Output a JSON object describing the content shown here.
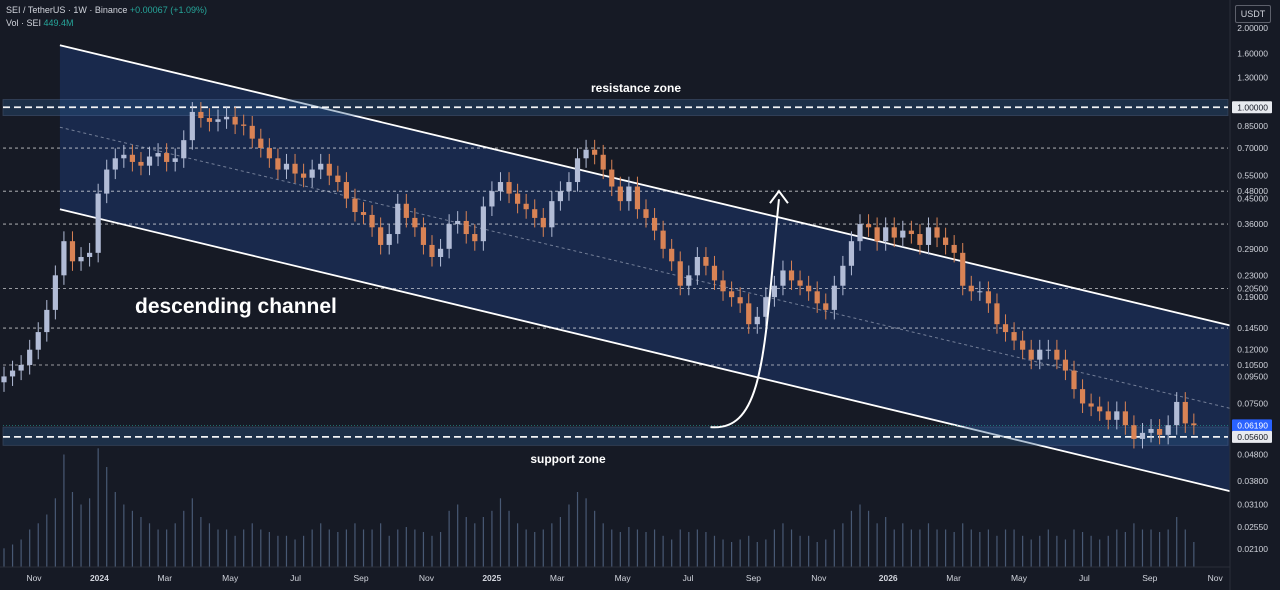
{
  "header": {
    "symbol": "SEI / TetherUS · 1W · Binance",
    "change": "+0.00067 (+1.09%)",
    "volume_label": "Vol · SEI",
    "volume_value": "449.4M"
  },
  "currency_button": "USDT",
  "colors": {
    "background": "#161a25",
    "up_candle": "#b2bcd6",
    "down_candle": "#d98355",
    "channel_fill": "#1a2a4f",
    "zone_fill": "#2c5a8a",
    "white": "#ffffff"
  },
  "chart_data": {
    "type": "candlestick",
    "title": "SEI / TetherUS · 1W · Binance",
    "scale": "log",
    "ylim": [
      0.018,
      2.5
    ],
    "price_axis_labels": [
      "2.00000",
      "1.60000",
      "1.30000",
      "1.00000",
      "0.85000",
      "0.70000",
      "0.55000",
      "0.48000",
      "0.45000",
      "0.36000",
      "0.29000",
      "0.23000",
      "0.20500",
      "0.19000",
      "0.14500",
      "0.12000",
      "0.10500",
      "0.09500",
      "0.07500",
      "0.06190",
      "0.05600",
      "0.04800",
      "0.03800",
      "0.03100",
      "0.02550",
      "0.02100"
    ],
    "time_axis_labels": [
      "Nov",
      "2024",
      "Mar",
      "May",
      "Jul",
      "Sep",
      "Nov",
      "2025",
      "Mar",
      "May",
      "Jul",
      "Sep",
      "Nov",
      "2026",
      "Mar",
      "May",
      "Jul",
      "Sep",
      "Nov"
    ],
    "annotations": {
      "channel": "descending channel",
      "resistance": "resistance zone",
      "support": "support zone"
    },
    "horizontal_levels": [
      1.0,
      0.7,
      0.48,
      0.36,
      0.205,
      0.145,
      0.105,
      0.056
    ],
    "current_price": 0.0619,
    "channel": {
      "upper": [
        {
          "date": "2023-12-04",
          "price": 1.72
        },
        {
          "date": "2026-07-27",
          "price": 0.145
        }
      ],
      "lower": [
        {
          "date": "2023-12-04",
          "price": 0.41
        },
        {
          "date": "2026-07-27",
          "price": 0.034
        }
      ]
    },
    "resistance_zone": [
      0.93,
      1.07
    ],
    "support_zone": [
      0.052,
      0.061
    ],
    "projection": {
      "from": {
        "date": "2025-05-19",
        "price": 0.061
      },
      "to": {
        "date": "2025-07-14",
        "price": 0.48
      }
    },
    "close_series": [
      0.095,
      0.1,
      0.105,
      0.12,
      0.14,
      0.17,
      0.23,
      0.31,
      0.26,
      0.27,
      0.28,
      0.47,
      0.58,
      0.64,
      0.66,
      0.62,
      0.6,
      0.65,
      0.67,
      0.62,
      0.64,
      0.75,
      0.96,
      0.91,
      0.88,
      0.9,
      0.92,
      0.86,
      0.85,
      0.76,
      0.7,
      0.64,
      0.58,
      0.61,
      0.56,
      0.54,
      0.58,
      0.61,
      0.55,
      0.52,
      0.45,
      0.4,
      0.39,
      0.35,
      0.3,
      0.33,
      0.43,
      0.38,
      0.35,
      0.3,
      0.27,
      0.29,
      0.36,
      0.37,
      0.33,
      0.31,
      0.42,
      0.48,
      0.52,
      0.47,
      0.43,
      0.41,
      0.38,
      0.35,
      0.44,
      0.48,
      0.52,
      0.64,
      0.69,
      0.66,
      0.58,
      0.5,
      0.44,
      0.5,
      0.41,
      0.38,
      0.34,
      0.29,
      0.26,
      0.21,
      0.23,
      0.27,
      0.25,
      0.22,
      0.2,
      0.19,
      0.18,
      0.15,
      0.16,
      0.19,
      0.21,
      0.24,
      0.22,
      0.21,
      0.2,
      0.18,
      0.17,
      0.21,
      0.25,
      0.31,
      0.36,
      0.35,
      0.31,
      0.35,
      0.32,
      0.34,
      0.33,
      0.3,
      0.35,
      0.32,
      0.3,
      0.28,
      0.21,
      0.2,
      0.2,
      0.18,
      0.15,
      0.14,
      0.13,
      0.12,
      0.11,
      0.12,
      0.12,
      0.11,
      0.1,
      0.085,
      0.075,
      0.073,
      0.07,
      0.065,
      0.07,
      0.062,
      0.055,
      0.058,
      0.06,
      0.057,
      0.062,
      0.076,
      0.063,
      0.062
    ],
    "volume_series": [
      0.15,
      0.18,
      0.22,
      0.3,
      0.35,
      0.42,
      0.55,
      0.9,
      0.6,
      0.5,
      0.55,
      0.95,
      0.8,
      0.6,
      0.5,
      0.45,
      0.4,
      0.35,
      0.3,
      0.3,
      0.35,
      0.45,
      0.55,
      0.4,
      0.35,
      0.3,
      0.3,
      0.25,
      0.3,
      0.35,
      0.3,
      0.28,
      0.25,
      0.25,
      0.22,
      0.25,
      0.3,
      0.35,
      0.3,
      0.28,
      0.3,
      0.35,
      0.3,
      0.3,
      0.35,
      0.25,
      0.3,
      0.32,
      0.3,
      0.28,
      0.25,
      0.28,
      0.45,
      0.5,
      0.4,
      0.35,
      0.4,
      0.45,
      0.55,
      0.45,
      0.35,
      0.3,
      0.28,
      0.3,
      0.35,
      0.4,
      0.5,
      0.6,
      0.55,
      0.45,
      0.35,
      0.3,
      0.28,
      0.32,
      0.3,
      0.28,
      0.3,
      0.25,
      0.22,
      0.3,
      0.28,
      0.3,
      0.28,
      0.25,
      0.22,
      0.2,
      0.22,
      0.25,
      0.2,
      0.22,
      0.3,
      0.35,
      0.3,
      0.25,
      0.25,
      0.2,
      0.22,
      0.3,
      0.35,
      0.45,
      0.5,
      0.45,
      0.35,
      0.4,
      0.3,
      0.35,
      0.3,
      0.3,
      0.35,
      0.3,
      0.3,
      0.28,
      0.35,
      0.3,
      0.28,
      0.3,
      0.25,
      0.3,
      0.3,
      0.25,
      0.22,
      0.25,
      0.3,
      0.25,
      0.22,
      0.3,
      0.28,
      0.25,
      0.22,
      0.25,
      0.3,
      0.28,
      0.35,
      0.3,
      0.3,
      0.28,
      0.3,
      0.4,
      0.3,
      0.2
    ]
  }
}
